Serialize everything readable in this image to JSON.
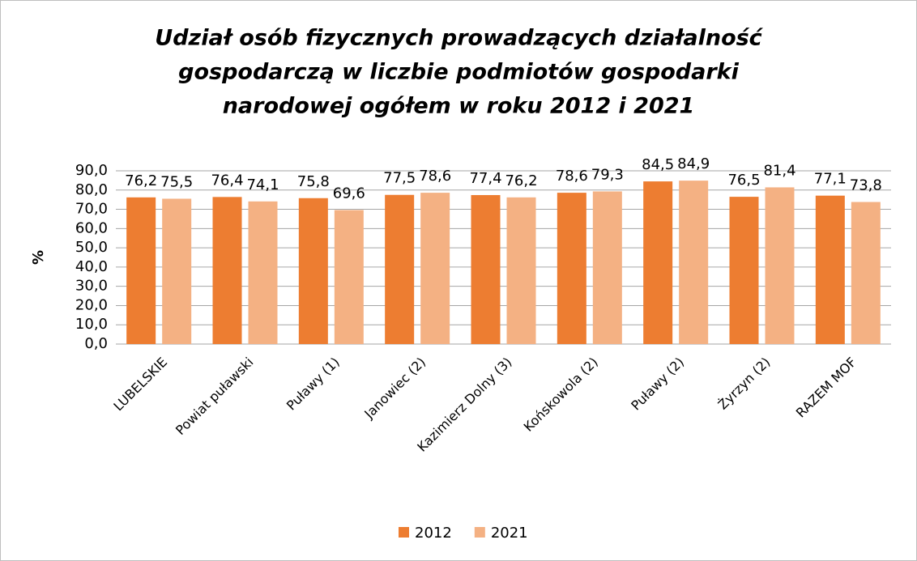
{
  "chart_data": {
    "type": "bar",
    "title": [
      "Udział osób fizycznych prowadzących działalność",
      "gospodarczą w liczbie podmiotów gospodarki",
      "narodowej ogółem w roku 2012 i 2021"
    ],
    "y_label": "%",
    "categories": [
      "LUBELSKIE",
      "Powiat puławski",
      "Puławy (1)",
      "Janowiec (2)",
      "Kazimierz Dolny (3)",
      "Końskowola (2)",
      "Puławy (2)",
      "Żyrzyn (2)",
      "RAZEM MOF"
    ],
    "series": [
      {
        "name": "2012",
        "color": "#ED7D31",
        "values": [
          76.2,
          76.4,
          75.8,
          77.5,
          77.4,
          78.6,
          84.5,
          76.5,
          77.1
        ],
        "value_labels": [
          "76,2",
          "76,4",
          "75,8",
          "77,5",
          "77,4",
          "78,6",
          "84,5",
          "76,5",
          "77,1"
        ]
      },
      {
        "name": "2021",
        "color": "#F4B183",
        "values": [
          75.5,
          74.1,
          69.6,
          78.6,
          76.2,
          79.3,
          84.9,
          81.4,
          73.8
        ],
        "value_labels": [
          "75,5",
          "74,1",
          "69,6",
          "78,6",
          "76,2",
          "79,3",
          "84,9",
          "81,4",
          "73,8"
        ]
      }
    ],
    "ylim": [
      0,
      90
    ],
    "yticks": [
      {
        "value": 0,
        "label": "0,0"
      },
      {
        "value": 10,
        "label": "10,0"
      },
      {
        "value": 20,
        "label": "20,0"
      },
      {
        "value": 30,
        "label": "30,0"
      },
      {
        "value": 40,
        "label": "40,0"
      },
      {
        "value": 50,
        "label": "50,0"
      },
      {
        "value": 60,
        "label": "60,0"
      },
      {
        "value": 70,
        "label": "70,0"
      },
      {
        "value": 80,
        "label": "80,0"
      },
      {
        "value": 90,
        "label": "90,0"
      }
    ],
    "grid": true,
    "legend": "bottom"
  }
}
